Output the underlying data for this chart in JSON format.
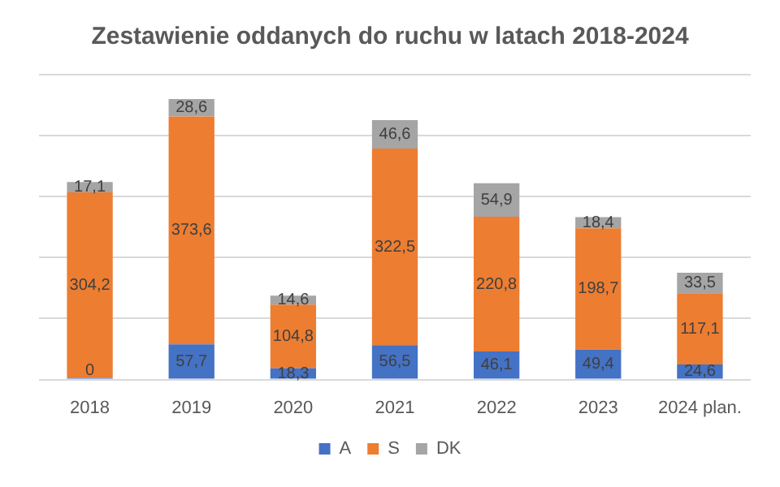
{
  "chart_data": {
    "type": "bar",
    "title": "Zestawienie oddanych do ruchu w latach 2018-2024",
    "categories": [
      "2018",
      "2019",
      "2020",
      "2021",
      "2022",
      "2023",
      "2024 plan."
    ],
    "stacked": true,
    "ylim": [
      0,
      500
    ],
    "yticks": [
      {
        "value": 0,
        "label": null
      },
      {
        "value": 100,
        "label": null
      },
      {
        "value": 200,
        "label": null
      },
      {
        "value": 300,
        "label": null
      },
      {
        "value": 400,
        "label": null
      },
      {
        "value": 500,
        "label": null
      }
    ],
    "grid": "y",
    "legend": "bottom",
    "series": [
      {
        "name": "A",
        "color": "#4472c4",
        "values": [
          0,
          57.7,
          18.3,
          56.5,
          46.1,
          49.4,
          24.6
        ],
        "value_labels": [
          "0",
          "57,7",
          "18,3",
          "56,5",
          "46,1",
          "49,4",
          "24,6"
        ]
      },
      {
        "name": "S",
        "color": "#ed7d31",
        "values": [
          304.2,
          373.6,
          104.8,
          322.5,
          220.8,
          198.7,
          117.1
        ],
        "value_labels": [
          "304,2",
          "373,6",
          "104,8",
          "322,5",
          "220,8",
          "198,7",
          "117,1"
        ]
      },
      {
        "name": "DK",
        "color": "#a5a5a5",
        "values": [
          17.1,
          28.6,
          14.6,
          46.6,
          54.9,
          18.4,
          33.5
        ],
        "value_labels": [
          "17,1",
          "28,6",
          "14,6",
          "46,6",
          "54,9",
          "18,4",
          "33,5"
        ]
      }
    ]
  }
}
